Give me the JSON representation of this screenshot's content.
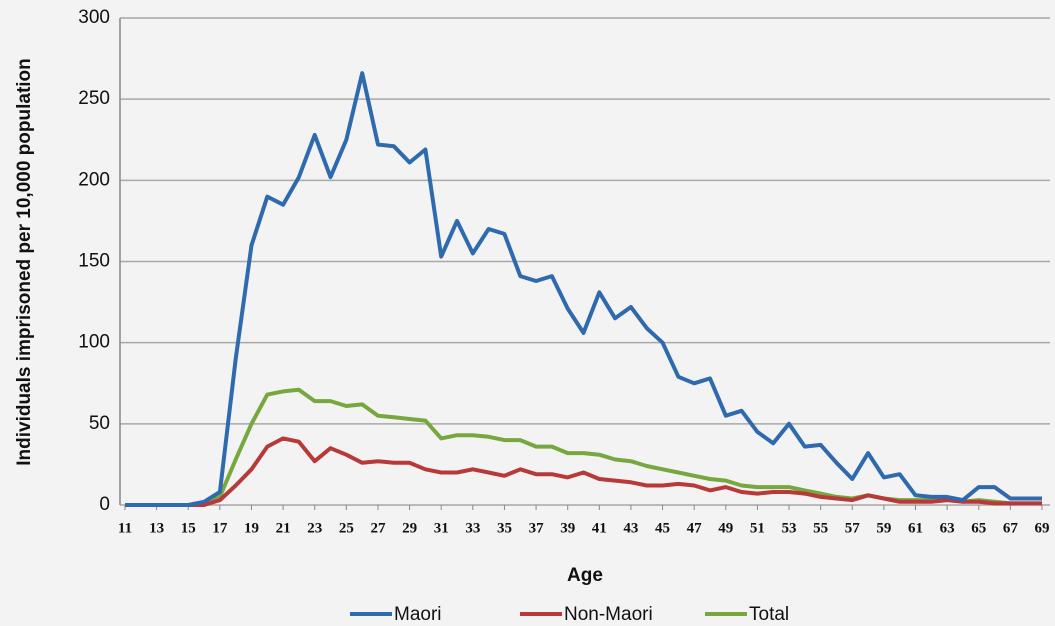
{
  "chart_data": {
    "type": "line",
    "xlabel": "Age",
    "ylabel": "Individuals imprisoned per 10,000 population",
    "x": [
      11,
      12,
      13,
      14,
      15,
      16,
      17,
      18,
      19,
      20,
      21,
      22,
      23,
      24,
      25,
      26,
      27,
      28,
      29,
      30,
      31,
      32,
      33,
      34,
      35,
      36,
      37,
      38,
      39,
      40,
      41,
      42,
      43,
      44,
      45,
      46,
      47,
      48,
      49,
      50,
      51,
      52,
      53,
      54,
      55,
      56,
      57,
      58,
      59,
      60,
      61,
      62,
      63,
      64,
      65,
      66,
      67,
      68,
      69
    ],
    "xlim": [
      11,
      69
    ],
    "xticks": [
      11,
      13,
      15,
      17,
      19,
      21,
      23,
      25,
      27,
      29,
      31,
      33,
      35,
      37,
      39,
      41,
      43,
      45,
      47,
      49,
      51,
      53,
      55,
      57,
      59,
      61,
      63,
      65,
      67,
      69
    ],
    "ylim": [
      0,
      300
    ],
    "yticks": [
      0,
      50,
      100,
      150,
      200,
      250,
      300
    ],
    "grid": true,
    "legend": "bottom",
    "series": [
      {
        "name": "Maori",
        "color": "#2e6aad",
        "values": [
          0,
          0,
          0,
          0,
          0,
          2,
          8,
          90,
          160,
          190,
          185,
          202,
          228,
          202,
          225,
          266,
          222,
          221,
          211,
          219,
          153,
          175,
          155,
          170,
          167,
          141,
          138,
          141,
          121,
          106,
          131,
          115,
          122,
          109,
          100,
          79,
          75,
          78,
          55,
          58,
          45,
          38,
          50,
          36,
          37,
          26,
          16,
          32,
          17,
          19,
          6,
          5,
          5,
          3,
          11,
          11,
          4,
          4,
          4
        ]
      },
      {
        "name": "Non-Maori",
        "color": "#b8393a",
        "values": [
          0,
          0,
          0,
          0,
          0,
          0,
          3,
          12,
          22,
          36,
          41,
          39,
          27,
          35,
          31,
          26,
          27,
          26,
          26,
          22,
          20,
          20,
          22,
          20,
          18,
          22,
          19,
          19,
          17,
          20,
          16,
          15,
          14,
          12,
          12,
          13,
          12,
          9,
          11,
          8,
          7,
          8,
          8,
          7,
          5,
          4,
          3,
          6,
          4,
          2,
          2,
          2,
          3,
          2,
          2,
          1,
          1,
          1,
          1
        ]
      },
      {
        "name": "Total",
        "color": "#78a73f",
        "values": [
          0,
          0,
          0,
          0,
          0,
          0,
          5,
          28,
          50,
          68,
          70,
          71,
          64,
          64,
          61,
          62,
          55,
          54,
          53,
          52,
          41,
          43,
          43,
          42,
          40,
          40,
          36,
          36,
          32,
          32,
          31,
          28,
          27,
          24,
          22,
          20,
          18,
          16,
          15,
          12,
          11,
          11,
          11,
          9,
          7,
          5,
          4,
          6,
          4,
          3,
          3,
          3,
          4,
          2,
          3,
          2,
          1,
          1,
          1
        ]
      }
    ]
  }
}
